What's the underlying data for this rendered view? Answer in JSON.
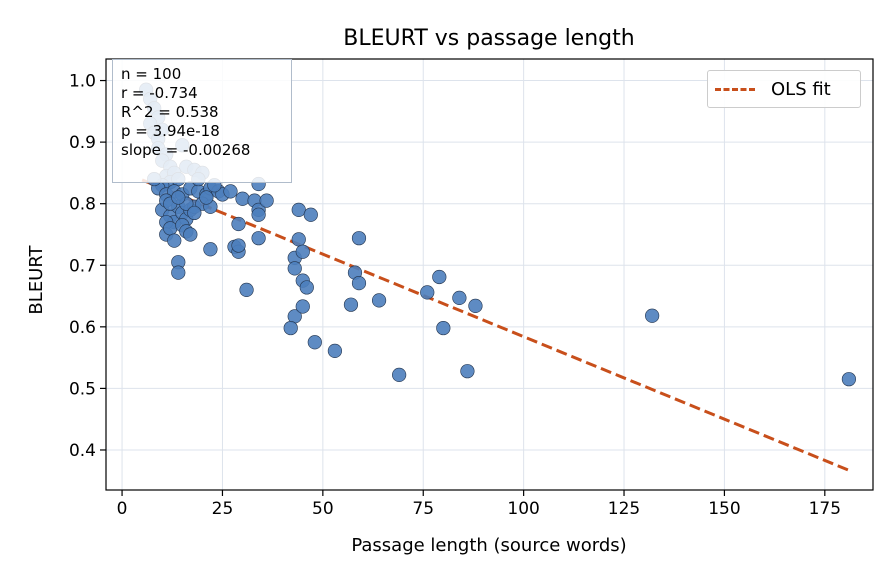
{
  "chart_data": {
    "type": "scatter",
    "title": "BLEURT vs passage length",
    "xlabel": "Passage length (source words)",
    "ylabel": "BLEURT",
    "xlim": [
      -4,
      187
    ],
    "ylim": [
      0.335,
      1.035
    ],
    "xticks": [
      "0",
      "25",
      "50",
      "75",
      "100",
      "125",
      "150",
      "175"
    ],
    "yticks": [
      "0.4",
      "0.5",
      "0.6",
      "0.7",
      "0.8",
      "0.9",
      "1.0"
    ],
    "grid": true,
    "legend_position": "top-right",
    "point_color": "#4c7ebd",
    "fit_color": "#c84f1b",
    "points": [
      [
        6,
        0.985
      ],
      [
        7,
        0.97
      ],
      [
        8,
        0.955
      ],
      [
        9,
        0.94
      ],
      [
        7,
        0.93
      ],
      [
        8,
        0.915
      ],
      [
        9,
        0.905
      ],
      [
        10,
        0.92
      ],
      [
        9,
        0.89
      ],
      [
        11,
        0.88
      ],
      [
        10,
        0.87
      ],
      [
        12,
        0.86
      ],
      [
        11,
        0.845
      ],
      [
        13,
        0.85
      ],
      [
        12,
        0.835
      ],
      [
        14,
        0.84
      ],
      [
        16,
        0.86
      ],
      [
        18,
        0.855
      ],
      [
        20,
        0.85
      ],
      [
        15,
        0.895
      ],
      [
        10,
        0.83
      ],
      [
        9,
        0.825
      ],
      [
        11,
        0.815
      ],
      [
        13,
        0.82
      ],
      [
        15,
        0.815
      ],
      [
        17,
        0.825
      ],
      [
        19,
        0.82
      ],
      [
        21,
        0.815
      ],
      [
        22,
        0.825
      ],
      [
        24,
        0.82
      ],
      [
        25,
        0.815
      ],
      [
        27,
        0.82
      ],
      [
        23,
        0.83
      ],
      [
        10,
        0.79
      ],
      [
        11,
        0.805
      ],
      [
        12,
        0.78
      ],
      [
        13,
        0.77
      ],
      [
        14,
        0.795
      ],
      [
        15,
        0.785
      ],
      [
        16,
        0.775
      ],
      [
        17,
        0.79
      ],
      [
        18,
        0.795
      ],
      [
        20,
        0.8
      ],
      [
        22,
        0.795
      ],
      [
        11,
        0.77
      ],
      [
        11,
        0.75
      ],
      [
        12,
        0.76
      ],
      [
        13,
        0.74
      ],
      [
        15,
        0.765
      ],
      [
        16,
        0.755
      ],
      [
        17,
        0.75
      ],
      [
        14,
        0.705
      ],
      [
        14,
        0.688
      ],
      [
        22,
        0.726
      ],
      [
        28,
        0.73
      ],
      [
        29,
        0.722
      ],
      [
        29,
        0.732
      ],
      [
        29,
        0.767
      ],
      [
        30,
        0.808
      ],
      [
        33,
        0.805
      ],
      [
        34,
        0.79
      ],
      [
        34,
        0.782
      ],
      [
        34,
        0.832
      ],
      [
        36,
        0.805
      ],
      [
        34,
        0.744
      ],
      [
        31,
        0.66
      ],
      [
        44,
        0.79
      ],
      [
        47,
        0.782
      ],
      [
        43,
        0.712
      ],
      [
        43,
        0.695
      ],
      [
        44,
        0.742
      ],
      [
        45,
        0.722
      ],
      [
        45,
        0.675
      ],
      [
        46,
        0.664
      ],
      [
        43,
        0.617
      ],
      [
        42,
        0.598
      ],
      [
        45,
        0.633
      ],
      [
        48,
        0.575
      ],
      [
        53,
        0.561
      ],
      [
        57,
        0.636
      ],
      [
        58,
        0.688
      ],
      [
        59,
        0.671
      ],
      [
        59,
        0.744
      ],
      [
        64,
        0.643
      ],
      [
        69,
        0.522
      ],
      [
        76,
        0.656
      ],
      [
        79,
        0.681
      ],
      [
        80,
        0.598
      ],
      [
        84,
        0.647
      ],
      [
        86,
        0.528
      ],
      [
        88,
        0.634
      ],
      [
        132,
        0.618
      ],
      [
        181,
        0.515
      ],
      [
        16,
        0.8
      ],
      [
        18,
        0.785
      ],
      [
        21,
        0.81
      ],
      [
        12,
        0.8
      ],
      [
        14,
        0.81
      ],
      [
        19,
        0.84
      ],
      [
        8,
        0.84
      ]
    ],
    "series": [
      {
        "name": "OLS fit",
        "type": "line",
        "x": [
          5,
          181
        ],
        "y": [
          0.8386,
          0.367
        ]
      }
    ],
    "annotation": {
      "lines": [
        "n = 100",
        "r = -0.734",
        "R^2 = 0.538",
        "p = 3.94e-18",
        "slope = -0.00268"
      ]
    }
  }
}
